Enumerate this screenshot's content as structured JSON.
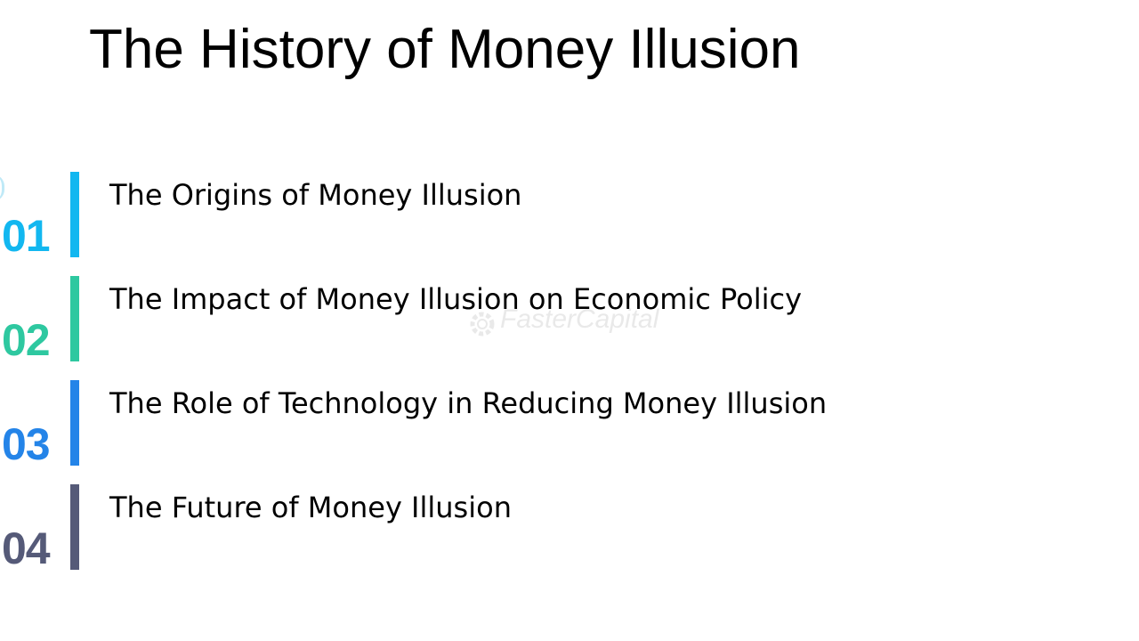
{
  "slide": {
    "title": "The History of Money Illusion",
    "watermark": "FasterCapital",
    "items": [
      {
        "number": "01",
        "label": "The Origins of Money Illusion",
        "color": "#12b7f0"
      },
      {
        "number": "02",
        "label": "The Impact of Money Illusion on Economic Policy",
        "color": "#2ec8a0"
      },
      {
        "number": "03",
        "label": "The Role of Technology in Reducing Money Illusion",
        "color": "#2484e8"
      },
      {
        "number": "04",
        "label": "The Future of Money Illusion",
        "color": "#555a78"
      }
    ]
  }
}
